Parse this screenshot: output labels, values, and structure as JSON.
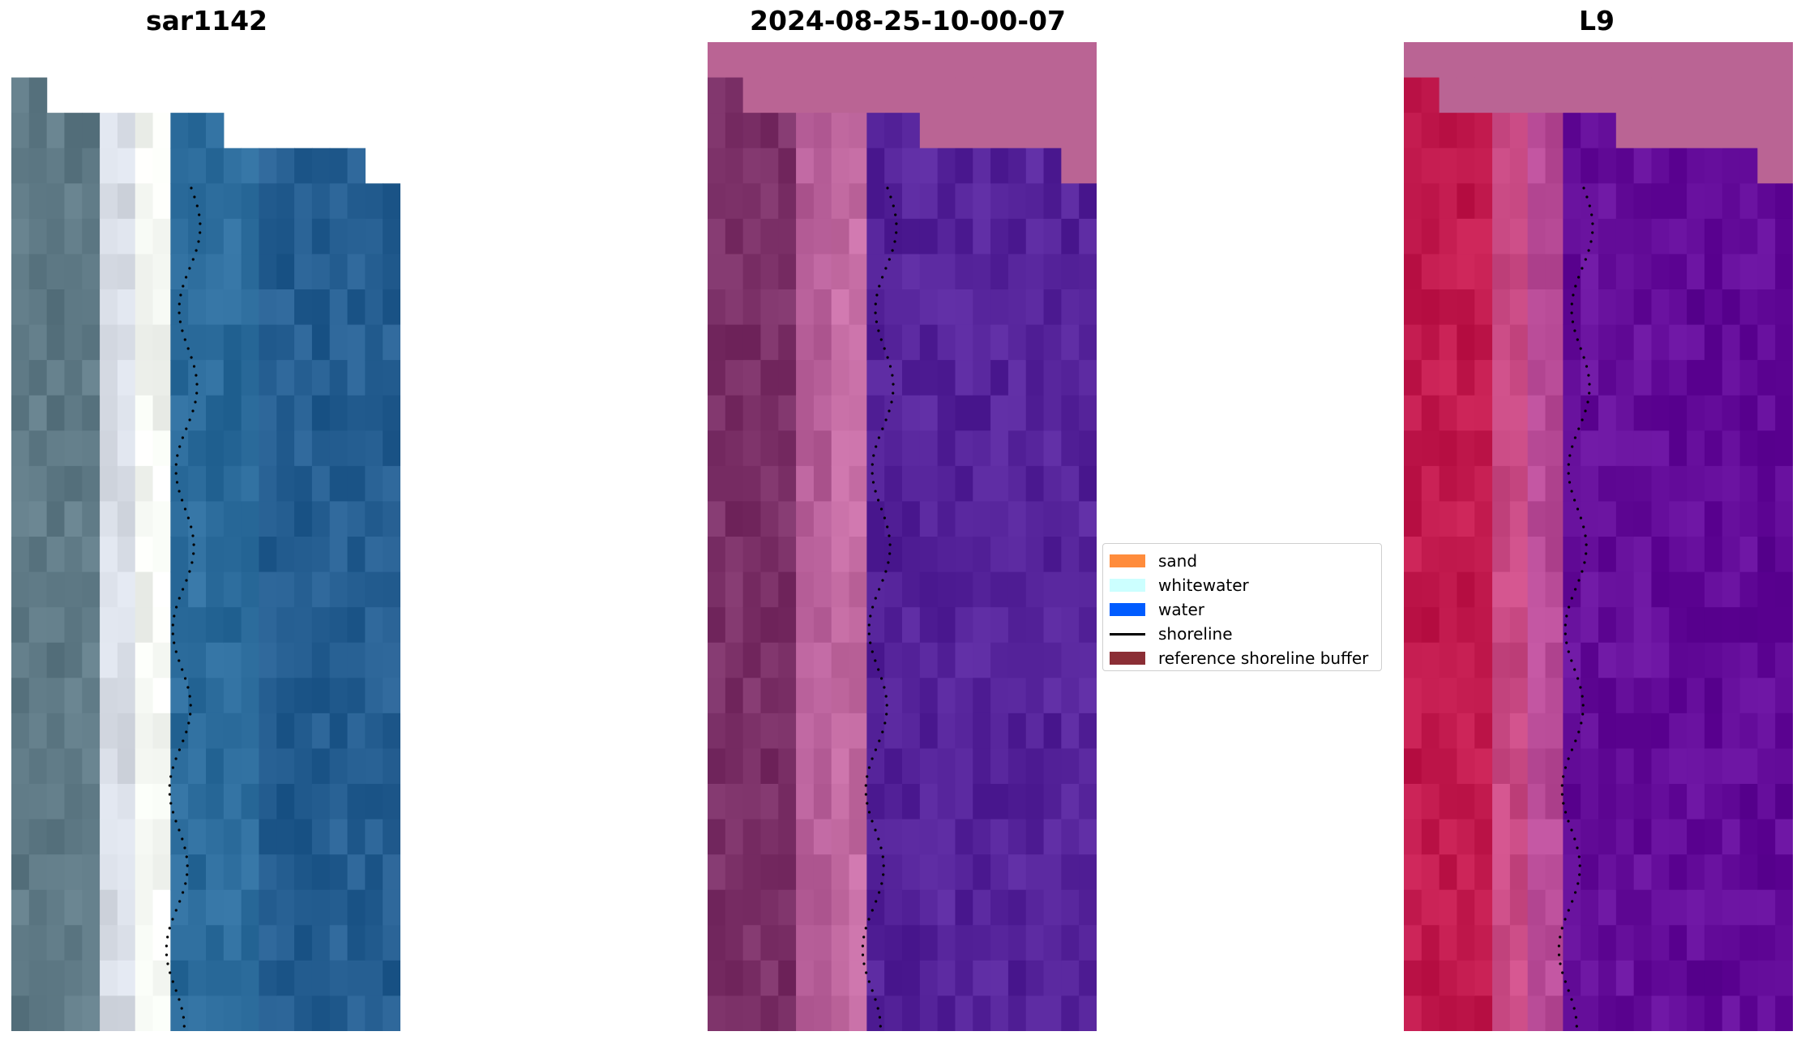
{
  "panels": [
    {
      "title": "sar1142",
      "colors": {
        "land": "#5f7a86",
        "sand": "#d8dde6",
        "white": "#f4f7f2",
        "water": "#2c6c9c",
        "deep": "#245d90"
      }
    },
    {
      "title": "2024-08-25-10-00-07",
      "colors": {
        "land": "#7a2f66",
        "sand": "#b65e98",
        "white": "#c46ca3",
        "water": "#55239a",
        "deep": "#55239a"
      }
    },
    {
      "title": "L9",
      "colors": {
        "land": "#c21a4e",
        "sand": "#c94a84",
        "white": "#b84b97",
        "water": "#650e9a",
        "deep": "#620a98"
      }
    }
  ],
  "nodata_color": "#ba6494",
  "legend": {
    "items": [
      {
        "label": "sand",
        "color": "#ff8c3c",
        "kind": "patch"
      },
      {
        "label": "whitewater",
        "color": "#ccffff",
        "kind": "patch"
      },
      {
        "label": "water",
        "color": "#005cff",
        "kind": "patch"
      },
      {
        "label": "shoreline",
        "color": "#000000",
        "kind": "line"
      },
      {
        "label": "reference shoreline buffer",
        "color": "#8b2e35",
        "kind": "patch"
      }
    ]
  }
}
